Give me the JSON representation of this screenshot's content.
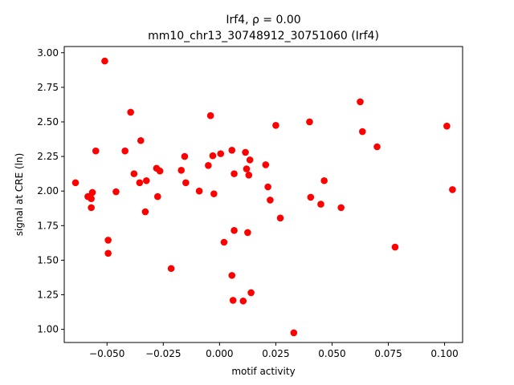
{
  "chart_data": {
    "type": "scatter",
    "title_line1": "Irf4, ρ = 0.00",
    "title_line2": "mm10_chr13_30748912_30751060 (Irf4)",
    "xlabel": "motif activity",
    "ylabel": "signal at CRE (ln)",
    "xlim": [
      -0.069,
      0.108
    ],
    "ylim": [
      0.905,
      3.045
    ],
    "x_ticks": [
      -0.05,
      -0.025,
      0.0,
      0.025,
      0.05,
      0.075,
      0.1
    ],
    "x_tick_labels": [
      "−0.050",
      "−0.025",
      "0.000",
      "0.025",
      "0.050",
      "0.075",
      "0.100"
    ],
    "y_ticks": [
      1.0,
      1.25,
      1.5,
      1.75,
      2.0,
      2.25,
      2.5,
      2.75,
      3.0
    ],
    "y_tick_labels": [
      "1.00",
      "1.25",
      "1.50",
      "1.75",
      "2.00",
      "2.25",
      "2.50",
      "2.75",
      "3.00"
    ],
    "grid": false,
    "marker_color": "#ff0000",
    "points": [
      {
        "x": -0.051,
        "y": 2.94
      },
      {
        "x": -0.0395,
        "y": 2.57
      },
      {
        "x": -0.004,
        "y": 2.545
      },
      {
        "x": 0.0625,
        "y": 2.645
      },
      {
        "x": 0.04,
        "y": 2.5
      },
      {
        "x": 0.025,
        "y": 2.475
      },
      {
        "x": 0.101,
        "y": 2.47
      },
      {
        "x": 0.0635,
        "y": 2.43
      },
      {
        "x": -0.035,
        "y": 2.365
      },
      {
        "x": 0.07,
        "y": 2.32
      },
      {
        "x": -0.055,
        "y": 2.29
      },
      {
        "x": -0.042,
        "y": 2.29
      },
      {
        "x": 0.0055,
        "y": 2.295
      },
      {
        "x": 0.0115,
        "y": 2.28
      },
      {
        "x": 0.0005,
        "y": 2.27
      },
      {
        "x": -0.003,
        "y": 2.255
      },
      {
        "x": -0.0155,
        "y": 2.25
      },
      {
        "x": 0.0135,
        "y": 2.225
      },
      {
        "x": -0.005,
        "y": 2.185
      },
      {
        "x": 0.0205,
        "y": 2.19
      },
      {
        "x": -0.028,
        "y": 2.165
      },
      {
        "x": 0.012,
        "y": 2.16
      },
      {
        "x": -0.0265,
        "y": 2.145
      },
      {
        "x": -0.017,
        "y": 2.15
      },
      {
        "x": -0.038,
        "y": 2.125
      },
      {
        "x": 0.0065,
        "y": 2.125
      },
      {
        "x": 0.013,
        "y": 2.115
      },
      {
        "x": 0.0465,
        "y": 2.075
      },
      {
        "x": -0.0325,
        "y": 2.075
      },
      {
        "x": -0.064,
        "y": 2.06
      },
      {
        "x": -0.0355,
        "y": 2.06
      },
      {
        "x": -0.015,
        "y": 2.06
      },
      {
        "x": 0.0215,
        "y": 2.03
      },
      {
        "x": 0.1035,
        "y": 2.01
      },
      {
        "x": -0.0565,
        "y": 1.99
      },
      {
        "x": -0.046,
        "y": 1.995
      },
      {
        "x": -0.009,
        "y": 2.0
      },
      {
        "x": -0.0025,
        "y": 1.98
      },
      {
        "x": -0.0275,
        "y": 1.96
      },
      {
        "x": -0.0585,
        "y": 1.96
      },
      {
        "x": -0.057,
        "y": 1.945
      },
      {
        "x": 0.0405,
        "y": 1.955
      },
      {
        "x": 0.0225,
        "y": 1.935
      },
      {
        "x": 0.045,
        "y": 1.905
      },
      {
        "x": -0.057,
        "y": 1.88
      },
      {
        "x": 0.054,
        "y": 1.88
      },
      {
        "x": -0.033,
        "y": 1.85
      },
      {
        "x": 0.027,
        "y": 1.805
      },
      {
        "x": 0.0065,
        "y": 1.715
      },
      {
        "x": 0.0125,
        "y": 1.7
      },
      {
        "x": -0.0495,
        "y": 1.645
      },
      {
        "x": 0.002,
        "y": 1.63
      },
      {
        "x": 0.078,
        "y": 1.595
      },
      {
        "x": -0.0495,
        "y": 1.55
      },
      {
        "x": -0.0215,
        "y": 1.44
      },
      {
        "x": 0.0055,
        "y": 1.39
      },
      {
        "x": 0.014,
        "y": 1.265
      },
      {
        "x": 0.006,
        "y": 1.21
      },
      {
        "x": 0.0105,
        "y": 1.205
      },
      {
        "x": 0.033,
        "y": 0.975
      }
    ]
  }
}
